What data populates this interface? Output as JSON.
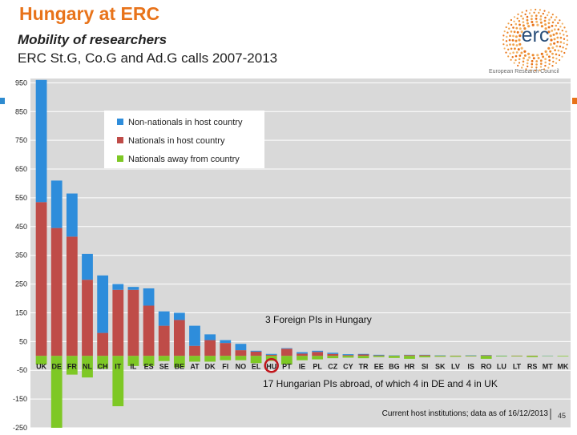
{
  "header": {
    "title": "Hungary at ERC",
    "subtitle1": "Mobility of researchers",
    "subtitle2": "ERC St.G, Co.G and Ad.G calls 2007-2013",
    "logo_text": "erc",
    "logo_tagline": "European Research Council"
  },
  "annotations": {
    "foreign_pis": "3 Foreign PIs in Hungary",
    "hungarian_abroad": "17 Hungarian PIs abroad, of which 4 in DE and 4 in UK",
    "source": "Current  host institutions; data as of 16/12/2013",
    "page_number": "45"
  },
  "colors": {
    "non_nationals": "#2e8ddb",
    "nationals_host": "#bf4c48",
    "nationals_away": "#7ec825",
    "title_orange": "#e8731a",
    "highlight_circle": "#c0161c",
    "plot_background": "#d9d9d9"
  },
  "chart_data": {
    "type": "bar",
    "stacked": true,
    "categories": [
      "UK",
      "DE",
      "FR",
      "NL",
      "CH",
      "IT",
      "IL",
      "ES",
      "SE",
      "BE",
      "AT",
      "DK",
      "FI",
      "NO",
      "EL",
      "HU",
      "PT",
      "IE",
      "PL",
      "CZ",
      "CY",
      "TR",
      "EE",
      "BG",
      "HR",
      "SI",
      "SK",
      "LV",
      "IS",
      "RO",
      "LU",
      "LT",
      "RS",
      "MT",
      "MK"
    ],
    "highlight_category": "HU",
    "series": [
      {
        "name": "Non-nationals in host country",
        "color": "#2e8ddb",
        "values": [
          425,
          165,
          150,
          90,
          200,
          20,
          10,
          60,
          50,
          25,
          70,
          20,
          10,
          22,
          3,
          3,
          2,
          5,
          4,
          4,
          3,
          2,
          2,
          1,
          1,
          1,
          1,
          0,
          1,
          1,
          1,
          0,
          0,
          1,
          0
        ]
      },
      {
        "name": "Nationals in host country",
        "color": "#bf4c48",
        "values": [
          535,
          445,
          415,
          265,
          80,
          230,
          230,
          175,
          105,
          125,
          35,
          55,
          45,
          20,
          15,
          4,
          25,
          8,
          14,
          7,
          3,
          5,
          2,
          1,
          3,
          3,
          1,
          1,
          1,
          2,
          0,
          1,
          1,
          0,
          0
        ]
      },
      {
        "name": "Nationals away from country",
        "color": "#7ec825",
        "values": [
          -30,
          -250,
          -65,
          -75,
          -45,
          -175,
          -35,
          -35,
          -18,
          -40,
          -20,
          -20,
          -15,
          -15,
          -25,
          -17,
          -30,
          -15,
          -12,
          -8,
          -6,
          -8,
          -4,
          -7,
          -10,
          -5,
          -3,
          -3,
          -2,
          -10,
          -2,
          -2,
          -4,
          -1,
          -2
        ]
      }
    ],
    "y_ticks": [
      950,
      850,
      750,
      650,
      550,
      450,
      350,
      250,
      150,
      50,
      -50,
      -150,
      -250
    ],
    "ylim": [
      -250,
      965
    ],
    "legend_position": "top-left",
    "grid": true
  }
}
